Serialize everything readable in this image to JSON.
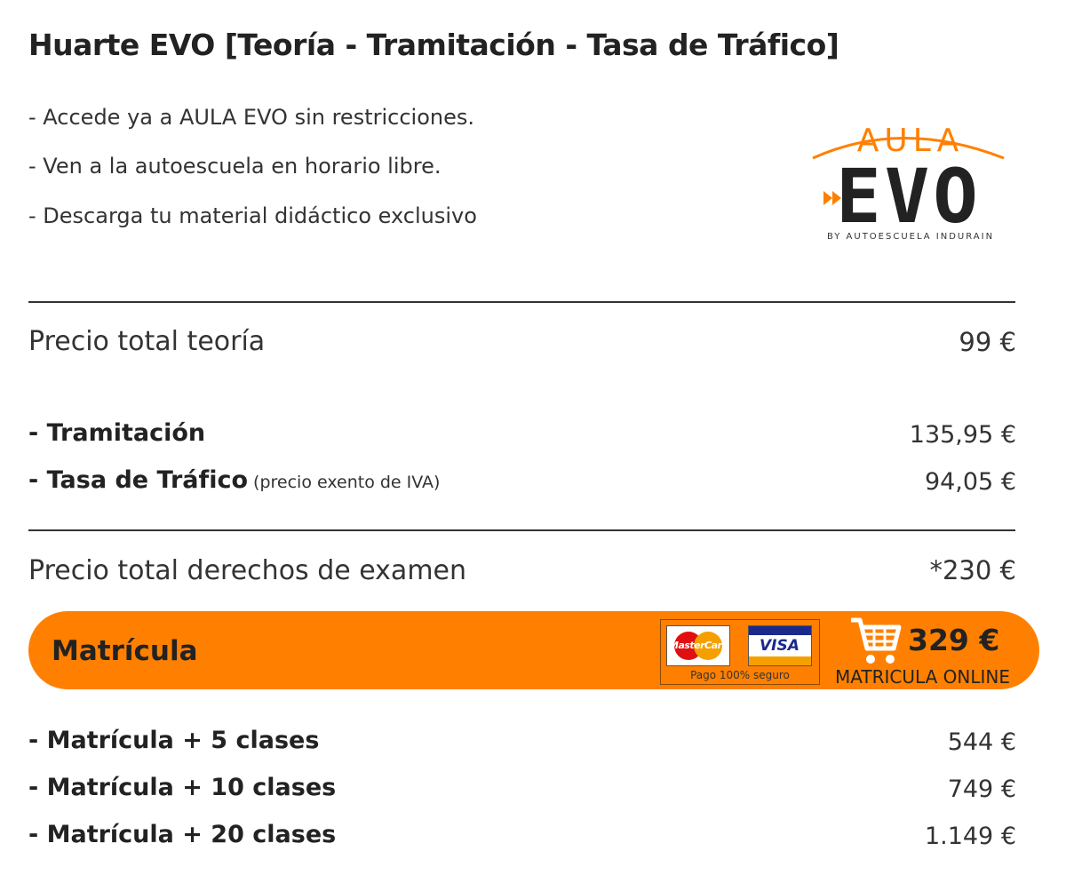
{
  "header": {
    "title": "Huarte EVO  [Teoría - Tramitación - Tasa de Tráfico]"
  },
  "features": [
    "- Accede ya a AULA EVO sin restricciones.",
    "- Ven a la autoescuela en horario libre.",
    "- Descarga tu material didáctico exclusivo"
  ],
  "logo": {
    "top": "AULA",
    "main": "EVO",
    "tagline": "BY AUTOESCUELA INDURAIN"
  },
  "prices": {
    "theory": {
      "label": "Precio total teoría",
      "price": "99 €"
    },
    "fees": [
      {
        "label": "- Tramitación",
        "price": "135,95 €"
      },
      {
        "label": "- Tasa de Tráfico",
        "note": "(precio exento de IVA)",
        "price": "94,05 €"
      }
    ],
    "exam": {
      "label": "Precio total derechos de examen",
      "price": "*230 €"
    }
  },
  "enrollment": {
    "label": "Matrícula",
    "cards": [
      "MasterCard",
      "VISA"
    ],
    "secure": "Pago 100% seguro",
    "price": "329 €",
    "action": "MATRICULA ONLINE"
  },
  "packs": [
    {
      "label": "- Matrícula + 5 clases",
      "price": "544 €"
    },
    {
      "label": "- Matrícula + 10 clases",
      "price": "749 €"
    },
    {
      "label": "- Matrícula + 20 clases",
      "price": "1.149 €"
    }
  ]
}
